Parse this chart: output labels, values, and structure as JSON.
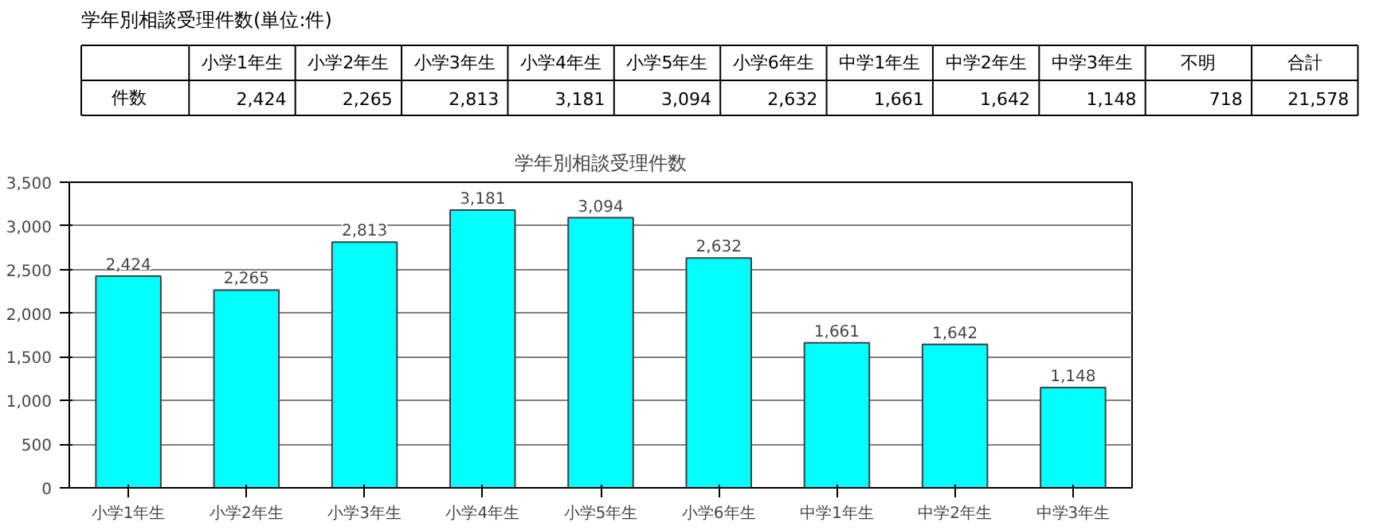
{
  "chart_data": [
    {
      "type": "other",
      "title": "学年別相談受理件数(単位:件)",
      "ylabel": "件数",
      "categories": [
        "小学1年生",
        "小学2年生",
        "小学3年生",
        "小学4年生",
        "小学5年生",
        "小学6年生",
        "中学1年生",
        "中学2年生",
        "中学3年生",
        "不明",
        "合計"
      ],
      "value_labels": [
        "2,424",
        "2,265",
        "2,813",
        "3,181",
        "3,094",
        "2,632",
        "1,661",
        "1,642",
        "1,148",
        "718",
        "21,578"
      ]
    },
    {
      "type": "bar",
      "title": "学年別相談受理件数",
      "categories": [
        "小学1年生",
        "小学2年生",
        "小学3年生",
        "小学4年生",
        "小学5年生",
        "小学6年生",
        "中学1年生",
        "中学2年生",
        "中学3年生"
      ],
      "values": [
        2424,
        2265,
        2813,
        3181,
        3094,
        2632,
        1661,
        1642,
        1148
      ],
      "value_labels": [
        "2,424",
        "2,265",
        "2,813",
        "3,181",
        "3,094",
        "2,632",
        "1,661",
        "1,642",
        "1,148"
      ],
      "color": "#00ffff",
      "grid": "y",
      "ylim": [
        0,
        3500
      ],
      "yticks": [
        0,
        500,
        {
          "value": 1000,
          "label": "1,000"
        },
        {
          "value": 1500,
          "label": "1,500"
        },
        {
          "value": 2000,
          "label": "2,000"
        },
        {
          "value": 2500,
          "label": "2,500"
        },
        {
          "value": 3000,
          "label": "3,000"
        },
        {
          "value": 3500,
          "label": "3,500"
        }
      ]
    }
  ]
}
